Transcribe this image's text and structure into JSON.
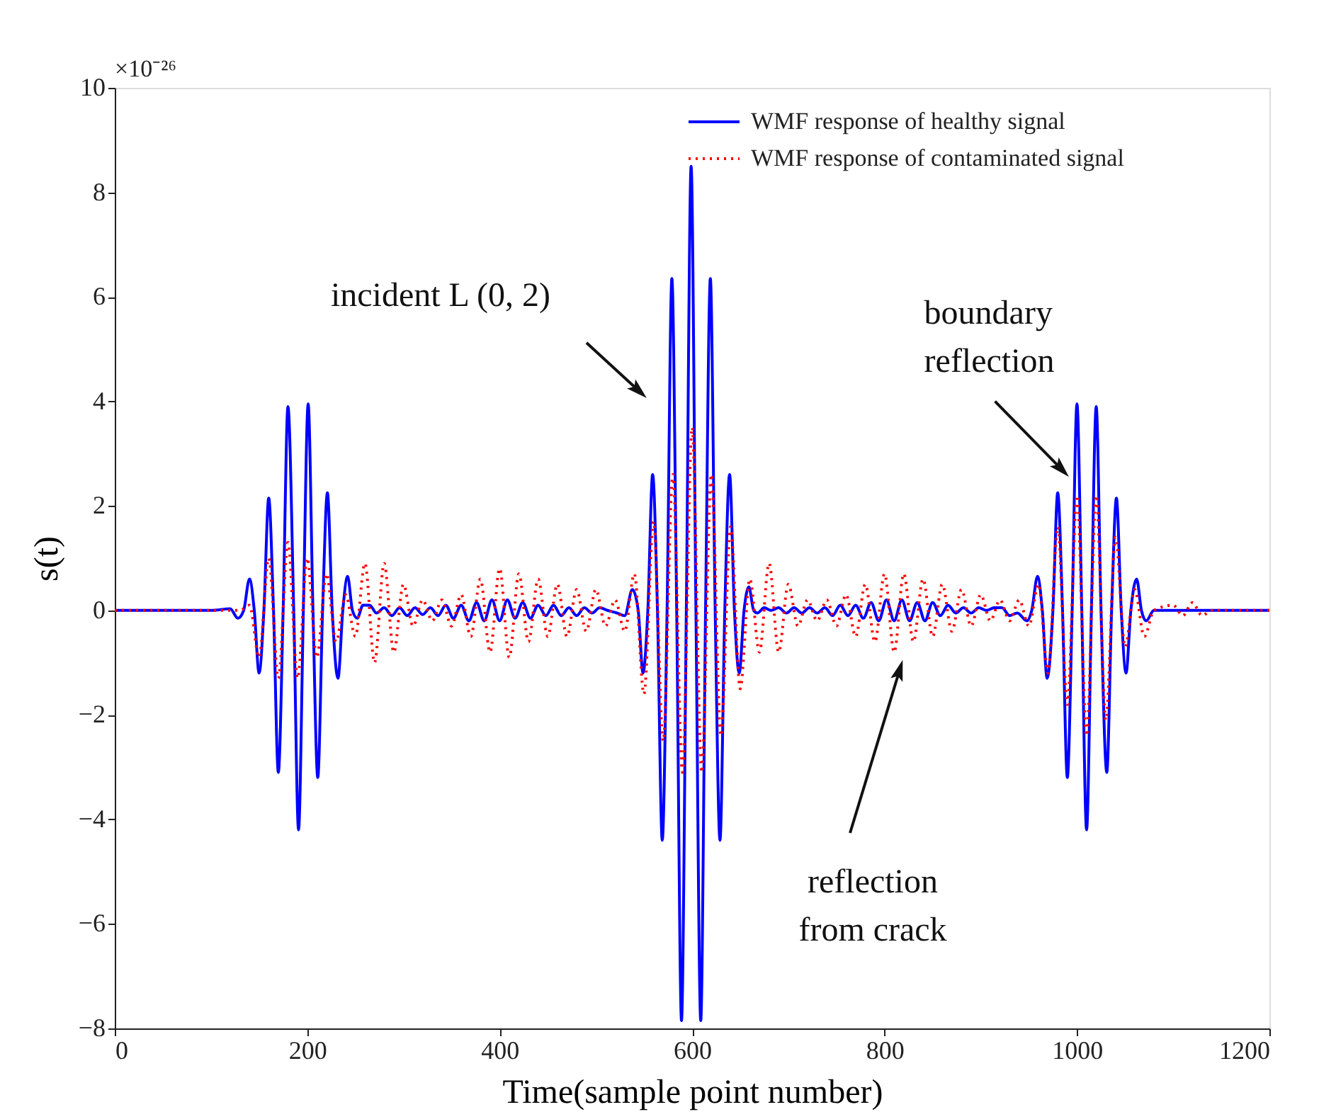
{
  "chart_data": {
    "type": "line",
    "xlabel": "Time(sample point number)",
    "ylabel": "s(t)",
    "xlim": [
      0,
      1200
    ],
    "xticks": [
      0,
      200,
      400,
      600,
      800,
      1000,
      1200
    ],
    "ylim": [
      -8,
      10
    ],
    "yticks": [
      -8,
      -6,
      -4,
      -2,
      0,
      2,
      4,
      6,
      8,
      10
    ],
    "grid": false,
    "legend": "top right",
    "marker": "none",
    "annotations": [
      "×10⁻²⁶",
      "incident L (0, 2)",
      {
        "text": "boundary\nreflection",
        "x": 984,
        "y": 2.7
      },
      "reflection\nfrom crack"
    ],
    "series": [
      {
        "name": "WMF response of healthy signal",
        "color": "#0000ff",
        "line_style": "solid",
        "x": [
          0,
          100,
          120,
          128,
          134,
          140,
          145,
          150,
          155,
          160,
          165,
          170,
          175,
          180,
          186,
          191,
          196,
          201,
          206,
          211,
          216,
          221,
          226,
          232,
          237,
          242,
          247,
          252,
          258,
          265,
          272,
          280,
          288,
          296,
          304,
          312,
          320,
          328,
          336,
          344,
          352,
          360,
          368,
          376,
          384,
          392,
          400,
          408,
          416,
          424,
          432,
          440,
          448,
          456,
          464,
          472,
          480,
          488,
          496,
          504,
          512,
          522,
          530,
          538,
          544,
          549,
          554,
          559,
          564,
          569,
          574,
          579,
          584,
          589,
          594,
          599,
          604,
          609,
          614,
          619,
          624,
          629,
          634,
          639,
          644,
          649,
          654,
          659,
          664,
          668,
          675,
          682,
          690,
          698,
          706,
          714,
          722,
          730,
          738,
          746,
          754,
          762,
          770,
          778,
          786,
          794,
          802,
          810,
          818,
          826,
          834,
          842,
          850,
          858,
          866,
          874,
          882,
          890,
          898,
          906,
          914,
          922,
          930,
          938,
          948,
          953,
          959,
          964,
          969,
          975,
          980,
          985,
          990,
          995,
          1000,
          1005,
          1010,
          1015,
          1020,
          1025,
          1031,
          1036,
          1041,
          1046,
          1051,
          1056,
          1062,
          1067,
          1072,
          1080,
          1200
        ],
        "values": [
          0,
          0,
          0.03,
          -0.15,
          0,
          0.6,
          0,
          -1.2,
          0,
          2.15,
          0,
          -3.1,
          0,
          3.9,
          0,
          -4.2,
          0,
          3.95,
          0,
          -3.2,
          0,
          2.25,
          0,
          -1.3,
          0,
          0.65,
          0,
          -0.15,
          0.1,
          0.1,
          -0.05,
          0.05,
          -0.1,
          0.05,
          -0.1,
          0.05,
          -0.08,
          0.05,
          -0.1,
          0.1,
          -0.15,
          0.1,
          -0.2,
          0.15,
          -0.2,
          0.2,
          -0.2,
          0.2,
          -0.15,
          0.15,
          -0.15,
          0.1,
          -0.1,
          0.1,
          -0.1,
          0.05,
          -0.1,
          0.05,
          -0.05,
          0.05,
          0,
          -0.05,
          -0.1,
          0.4,
          0,
          -1.2,
          0,
          2.6,
          0,
          -4.4,
          0,
          6.35,
          0,
          -7.85,
          0,
          8.5,
          0,
          -7.85,
          0,
          6.35,
          0,
          -4.4,
          0,
          2.6,
          0,
          -1.2,
          0,
          0.45,
          0,
          -0.05,
          0.05,
          0,
          0.05,
          -0.05,
          0.05,
          -0.05,
          0.05,
          -0.05,
          0.05,
          -0.1,
          0.1,
          -0.1,
          0.1,
          -0.15,
          0.15,
          -0.2,
          0.2,
          -0.2,
          0.2,
          -0.2,
          0.15,
          -0.2,
          0.15,
          -0.1,
          0.1,
          -0.05,
          0.05,
          -0.05,
          0.05,
          0,
          0.05,
          0.05,
          -0.1,
          -0.05,
          -0.2,
          0,
          0.65,
          0,
          -1.3,
          0,
          2.25,
          0,
          -3.2,
          0,
          3.95,
          0,
          -4.2,
          0,
          3.9,
          0,
          -3.1,
          0,
          2.15,
          0,
          -1.2,
          0,
          0.6,
          0,
          -0.2,
          0,
          0
        ]
      },
      {
        "name": "WMF response of contaminated signal",
        "color": "#ff0000",
        "line_style": "dotted",
        "x": [
          0,
          100,
          130,
          140,
          150,
          160,
          170,
          180,
          190,
          200,
          210,
          220,
          230,
          240,
          250,
          260,
          270,
          280,
          290,
          300,
          310,
          320,
          330,
          340,
          350,
          360,
          370,
          380,
          390,
          400,
          410,
          420,
          430,
          440,
          450,
          460,
          470,
          480,
          490,
          500,
          510,
          520,
          530,
          540,
          550,
          560,
          570,
          580,
          590,
          600,
          610,
          620,
          630,
          640,
          650,
          660,
          670,
          680,
          690,
          700,
          710,
          720,
          730,
          740,
          750,
          760,
          770,
          780,
          790,
          800,
          810,
          820,
          830,
          840,
          850,
          860,
          870,
          880,
          890,
          900,
          910,
          920,
          930,
          940,
          950,
          960,
          970,
          980,
          990,
          1000,
          1010,
          1020,
          1030,
          1040,
          1050,
          1060,
          1070,
          1080,
          1100,
          1110,
          1120,
          1130,
          1140,
          1200
        ],
        "values": [
          0,
          0,
          0,
          0.1,
          -0.9,
          1.0,
          -1.3,
          1.3,
          -1.3,
          1.0,
          -0.9,
          0.7,
          -0.6,
          0.3,
          -0.5,
          0.9,
          -1.0,
          0.9,
          -0.8,
          0.5,
          -0.3,
          0.2,
          -0.2,
          0.2,
          -0.3,
          0.3,
          -0.5,
          0.6,
          -0.8,
          0.8,
          -0.9,
          0.7,
          -0.6,
          0.6,
          -0.5,
          0.5,
          -0.5,
          0.4,
          -0.4,
          0.4,
          -0.3,
          0.2,
          -0.4,
          0.7,
          -1.6,
          1.7,
          -2.5,
          2.6,
          -3.1,
          3.5,
          -3.1,
          2.6,
          -2.4,
          1.6,
          -1.5,
          0.6,
          -0.8,
          0.9,
          -0.8,
          0.5,
          -0.3,
          0.2,
          -0.2,
          0.2,
          -0.3,
          0.3,
          -0.5,
          0.5,
          -0.6,
          0.7,
          -0.8,
          0.7,
          -0.6,
          0.6,
          -0.5,
          0.5,
          -0.4,
          0.4,
          -0.3,
          0.3,
          -0.2,
          0.2,
          -0.2,
          0.2,
          -0.3,
          0.5,
          -1.2,
          1.6,
          -1.8,
          2.2,
          -2.4,
          2.2,
          -2.1,
          1.4,
          -0.7,
          0.4,
          -0.5,
          0,
          0.1,
          -0.1,
          0.15,
          -0.1,
          0,
          0
        ]
      }
    ]
  }
}
